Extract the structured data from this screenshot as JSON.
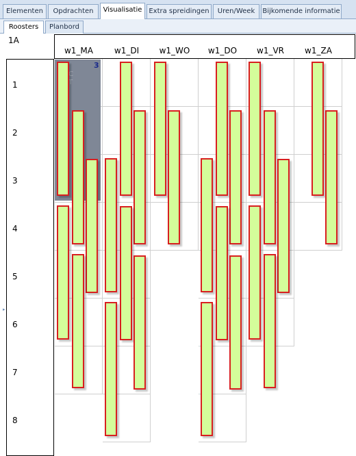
{
  "tabs": [
    "Elementen",
    "Opdrachten",
    "Visualisatie",
    "Extra spreidingen",
    "Uren/Week",
    "Bijkomende informatie"
  ],
  "subtabs": [
    "Roosters",
    "Planbord"
  ],
  "class_label": "1A",
  "days": [
    "w1_MA",
    "w1_DI",
    "w1_WO",
    "w1_DO",
    "w1_VR",
    "w1_ZA"
  ],
  "periods": [
    "1",
    "2",
    "3",
    "4",
    "5",
    "6",
    "7",
    "8"
  ],
  "selection": {
    "count": "3",
    "partial_text_1": "C",
    "partial_text_2": "T"
  }
}
